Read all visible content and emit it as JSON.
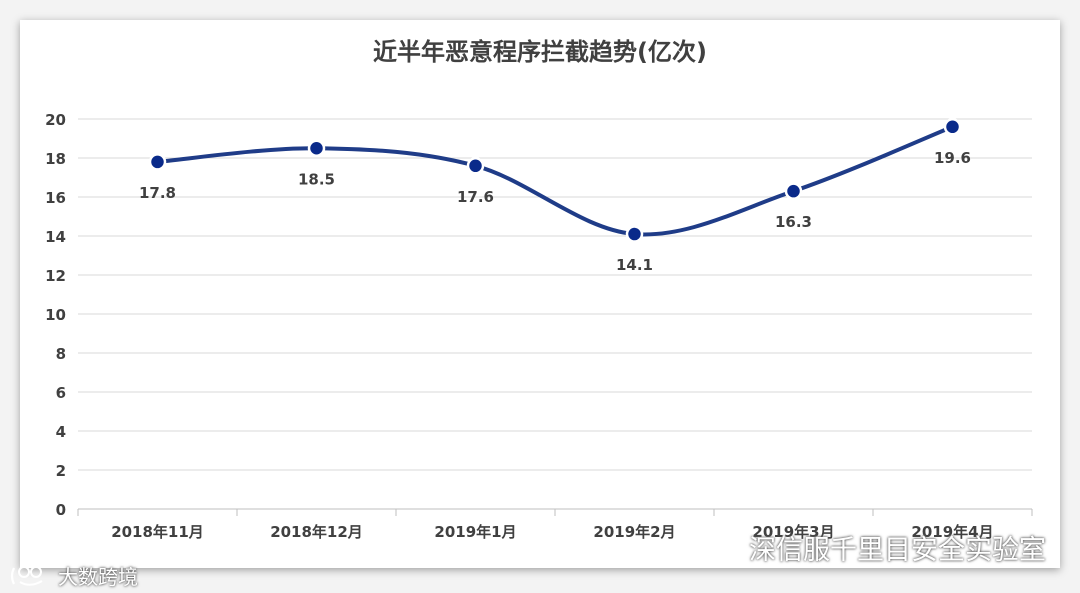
{
  "chart_data": {
    "type": "line",
    "title": "近半年恶意程序拦截趋势(亿次)",
    "categories": [
      "2018年11月",
      "2018年12月",
      "2019年1月",
      "2019年2月",
      "2019年3月",
      "2019年4月"
    ],
    "series": [
      {
        "values": [
          17.8,
          18.5,
          17.6,
          14.1,
          16.3,
          19.6
        ]
      }
    ],
    "data_labels": [
      "17.8",
      "18.5",
      "17.6",
      "14.1",
      "16.3",
      "19.6"
    ],
    "ylim": [
      0,
      20
    ],
    "yticks": [
      "0",
      "2",
      "4",
      "6",
      "8",
      "10",
      "12",
      "14",
      "16",
      "18",
      "20"
    ],
    "grid": true,
    "smooth": true,
    "colors": {
      "line": "#1f3c88",
      "marker": "#0a2a8a",
      "grid": "#d9d9d9",
      "text": "#404040"
    }
  },
  "watermarks": {
    "right": "深信服千里目安全实验室",
    "left": "大数跨境",
    "right_icon": "wechat-icon",
    "left_icon": "brand-logo-icon"
  }
}
